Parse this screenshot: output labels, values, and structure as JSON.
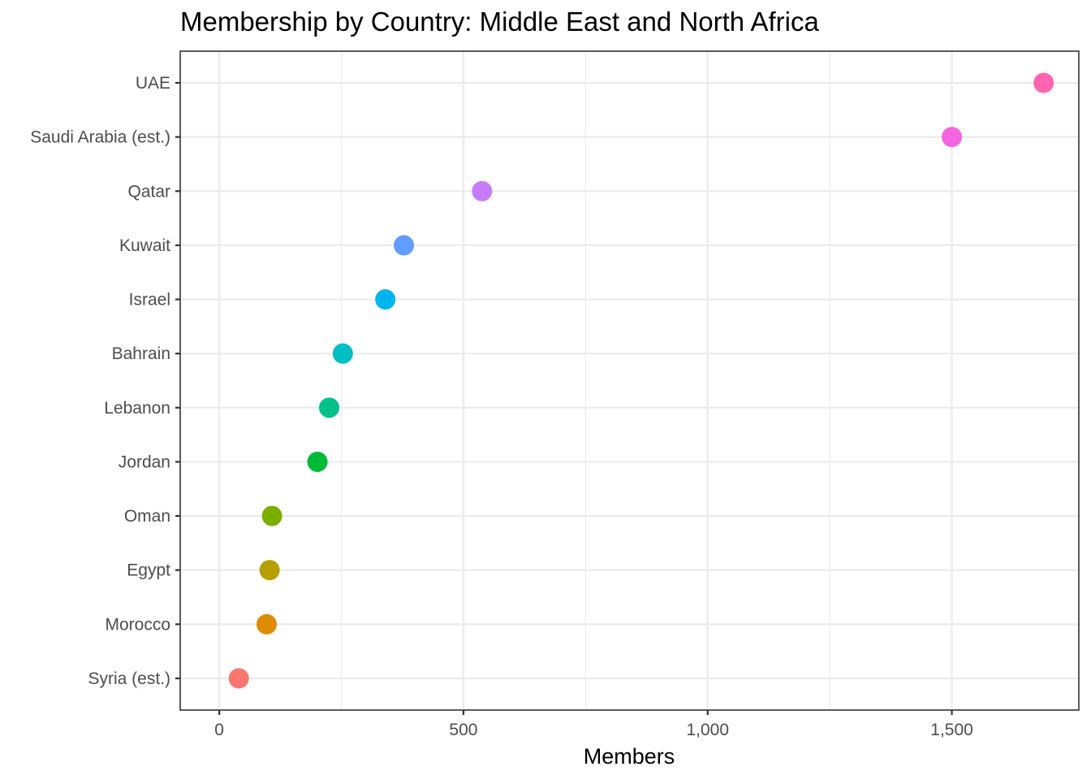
{
  "chart_data": {
    "type": "scatter",
    "title": "Membership by Country: Middle East and North Africa",
    "xlabel": "Members",
    "ylabel": "",
    "xlim": [
      -80,
      1760
    ],
    "x_ticks": [
      0,
      500,
      1000,
      1500
    ],
    "x_tick_labels": [
      "0",
      "500",
      "1,000",
      "1,500"
    ],
    "x_minor_ticks": [
      250,
      750,
      1250
    ],
    "grid": true,
    "legend": "none",
    "categories": [
      "Syria (est.)",
      "Morocco",
      "Egypt",
      "Oman",
      "Jordan",
      "Lebanon",
      "Bahrain",
      "Israel",
      "Kuwait",
      "Qatar",
      "Saudi Arabia (est.)",
      "UAE"
    ],
    "values": [
      40,
      97,
      103,
      108,
      201,
      225,
      253,
      340,
      378,
      538,
      1500,
      1688
    ],
    "colors": [
      "#F8766D",
      "#DE8C00",
      "#B79F00",
      "#7CAE00",
      "#00BA38",
      "#00C08B",
      "#00BFC4",
      "#00B4F0",
      "#619CFF",
      "#C77CFF",
      "#F564E3",
      "#FF64B0"
    ]
  }
}
